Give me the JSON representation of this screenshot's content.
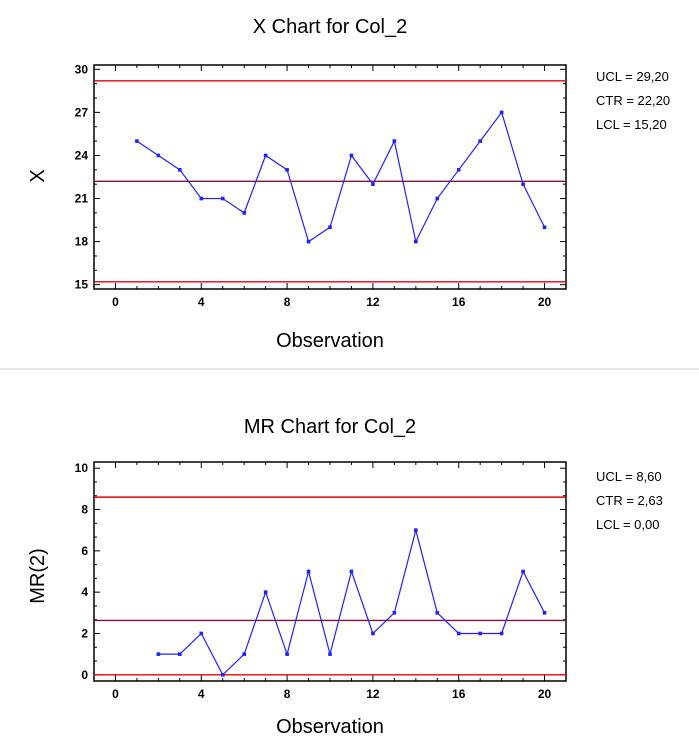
{
  "chart_data": [
    {
      "type": "line",
      "title": "X Chart for Col_2",
      "xlabel": "Observation",
      "ylabel": "X",
      "xlim": [
        -1,
        21
      ],
      "ylim": [
        14.7,
        30.3
      ],
      "x_ticks": [
        "0",
        "4",
        "8",
        "12",
        "16",
        "20"
      ],
      "y_ticks": [
        "15",
        "18",
        "21",
        "24",
        "27",
        "30"
      ],
      "series": [
        {
          "x": [
            1,
            2,
            3,
            4,
            5,
            6,
            7,
            8,
            9,
            10,
            11,
            12,
            13,
            14,
            15,
            16,
            17,
            18,
            19,
            20
          ],
          "values": [
            25,
            24,
            23,
            21,
            21,
            20,
            24,
            23,
            18,
            19,
            24,
            22,
            25,
            18,
            21,
            23,
            25,
            27,
            22,
            19
          ],
          "color": "#2222ff"
        }
      ],
      "limits": [
        {
          "label": "UCL = 29,20",
          "value": 29.2,
          "color": "#e8000b"
        },
        {
          "label": "CTR = 22,20",
          "value": 22.2,
          "color": "#7a1640"
        },
        {
          "label": "LCL = 15,20",
          "value": 15.2,
          "color": "#e8000b"
        }
      ]
    },
    {
      "type": "line",
      "title": "MR Chart for Col_2",
      "xlabel": "Observation",
      "ylabel": "MR(2)",
      "xlim": [
        -1,
        21
      ],
      "ylim": [
        -0.3,
        10.3
      ],
      "x_ticks": [
        "0",
        "4",
        "8",
        "12",
        "16",
        "20"
      ],
      "y_ticks": [
        "0",
        "2",
        "4",
        "6",
        "8",
        "10"
      ],
      "series": [
        {
          "x": [
            2,
            3,
            4,
            5,
            6,
            7,
            8,
            9,
            10,
            11,
            12,
            13,
            14,
            15,
            16,
            17,
            18,
            19,
            20
          ],
          "values": [
            1,
            1,
            2,
            0,
            1,
            4,
            1,
            5,
            1,
            5,
            2,
            3,
            7,
            3,
            2,
            2,
            2,
            5,
            3
          ],
          "color": "#2222ff"
        }
      ],
      "limits": [
        {
          "label": "UCL = 8,60",
          "value": 8.6,
          "color": "#e8000b"
        },
        {
          "label": "CTR = 2,63",
          "value": 2.63,
          "color": "#7a1640"
        },
        {
          "label": "LCL = 0,00",
          "value": 0.0,
          "color": "#e8000b"
        }
      ]
    }
  ]
}
